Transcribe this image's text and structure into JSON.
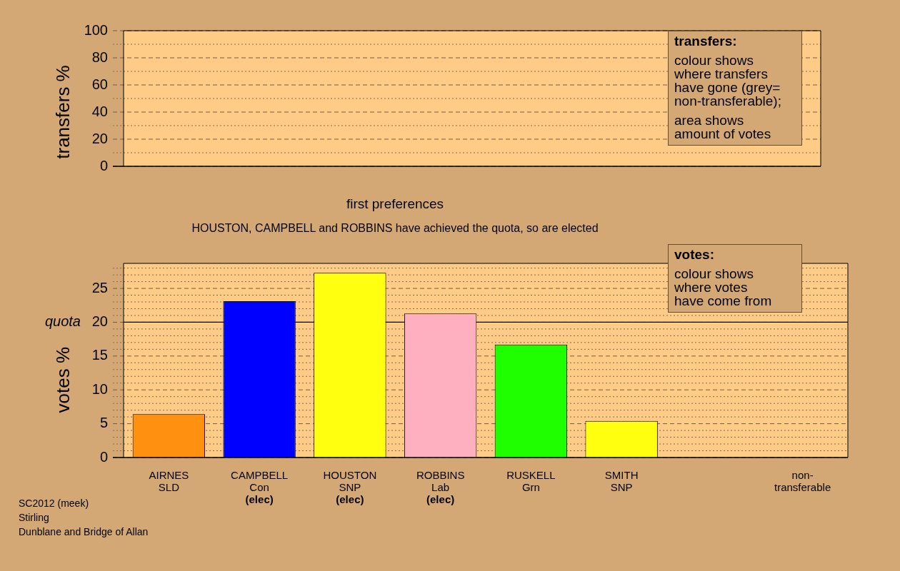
{
  "chart_data": [
    {
      "type": "bar",
      "ylabel": "transfers %",
      "categories": [
        null,
        null,
        null,
        null,
        null,
        null,
        null,
        null
      ],
      "values": [
        null,
        null,
        null,
        null,
        null,
        null,
        null,
        null
      ],
      "ylim": [
        0,
        100
      ],
      "yticks": [
        0,
        {
          "value": 10,
          "label": null
        },
        20,
        {
          "value": 30,
          "label": null
        },
        40,
        {
          "value": 50,
          "label": null
        },
        60,
        {
          "value": 70,
          "label": null
        },
        80,
        {
          "value": 90,
          "label": null
        },
        100
      ],
      "grid": "y",
      "tick_labels": "y",
      "legend": false,
      "annotations": [
        "transfers:\ncolour shows\nwhere transfers\nhave gone (grey=\nnon-transferable);\narea shows\namount of votes"
      ]
    },
    {
      "type": "bar",
      "title": "first preferences",
      "subtitle": "HOUSTON, CAMPBELL and ROBBINS have achieved the quota, so are elected",
      "ylabel": "votes %",
      "categories": [
        "AIRNES\nSLD",
        "CAMPBELL\nCon\n(elec)",
        "HOUSTON\nSNP\n(elec)",
        "ROBBINS\nLab\n(elec)",
        "RUSKELL\nGrn",
        "SMITH\nSNP",
        null,
        "non-\ntransferable"
      ],
      "values": [
        6.4,
        23.1,
        27.3,
        21.3,
        16.7,
        5.4,
        null,
        0
      ],
      "colors": [
        "#ff9010",
        "#0000ff",
        "#ffff10",
        "#ffb0c0",
        "#20ff00",
        "#ffff10",
        "#a0a0a0",
        "#a0a0a0"
      ],
      "ylim": [
        0,
        28.7
      ],
      "yticks": [
        0,
        {
          "value": 1,
          "label": null
        },
        {
          "value": 2,
          "label": null
        },
        {
          "value": 3,
          "label": null
        },
        {
          "value": 4,
          "label": null
        },
        5,
        {
          "value": 6,
          "label": null
        },
        {
          "value": 7,
          "label": null
        },
        {
          "value": 8,
          "label": null
        },
        {
          "value": 9,
          "label": null
        },
        10,
        {
          "value": 11,
          "label": null
        },
        {
          "value": 12,
          "label": null
        },
        {
          "value": 13,
          "label": null
        },
        {
          "value": 14,
          "label": null
        },
        15,
        {
          "value": 16,
          "label": null
        },
        {
          "value": 17,
          "label": null
        },
        {
          "value": 18,
          "label": null
        },
        {
          "value": 19,
          "label": null
        },
        20,
        {
          "value": 21,
          "label": null
        },
        {
          "value": 22,
          "label": null
        },
        {
          "value": 23,
          "label": null
        },
        {
          "value": 24,
          "label": null
        },
        25,
        {
          "value": 26,
          "label": null
        },
        {
          "value": 27,
          "label": null
        },
        {
          "value": 28,
          "label": null
        }
      ],
      "ref_lines": [
        {
          "axis": "y",
          "value": 20,
          "label": "quota",
          "color": "#000000"
        }
      ],
      "grid": "y",
      "legend": false,
      "annotations": [
        "votes:\ncolour shows\nwhere votes\nhave come from",
        "SC2012 (meek)\nStirling\nDunblane and Bridge of Allan"
      ]
    }
  ]
}
